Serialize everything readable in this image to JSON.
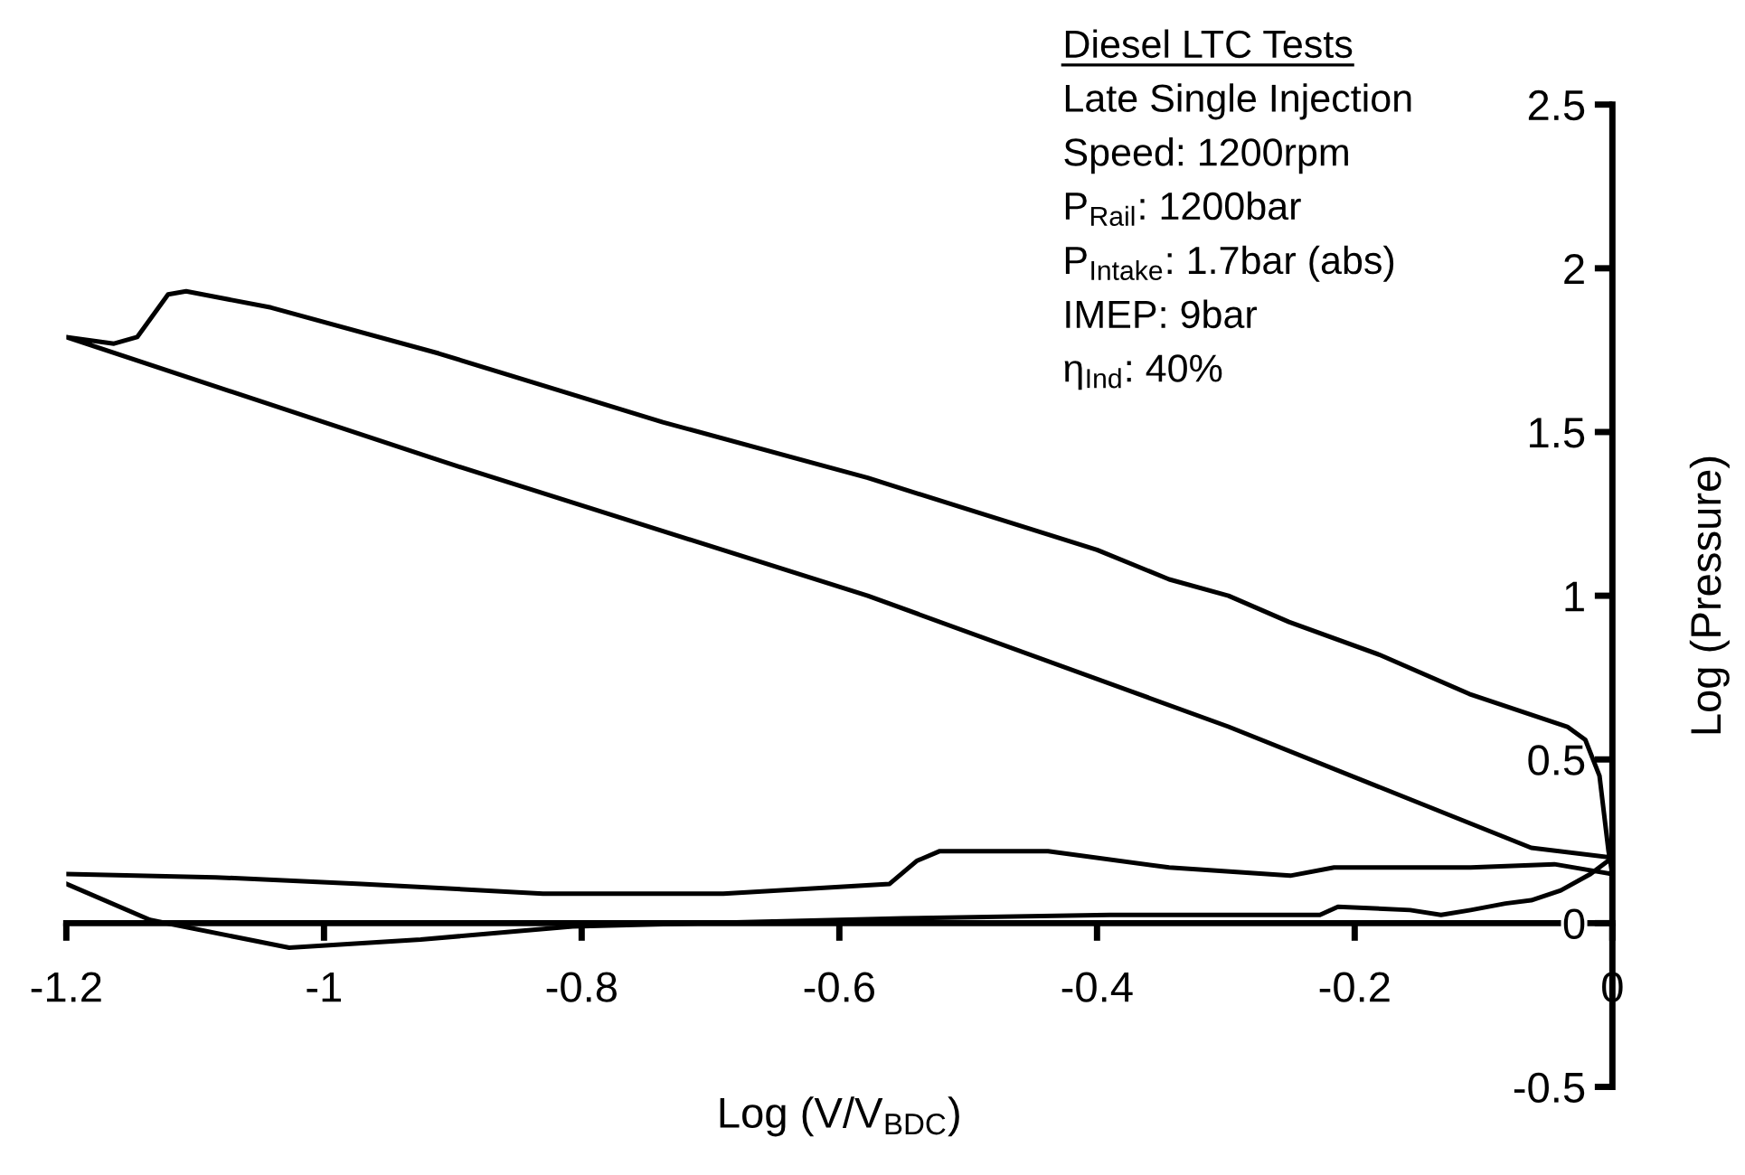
{
  "chart_data": {
    "type": "line",
    "xlabel": "Log (V/V$_{BDC}$)",
    "ylabel": "Log (Pressure)",
    "annotations": [
      "Diesel LTC Tests",
      "Late Single Injection",
      "Speed: 1200rpm",
      "P$_{Rail}$: 1200bar",
      "P$_{Intake}$: 1.7bar (abs)",
      "IMEP: 9bar",
      "η$_{Ind}$: 40%"
    ],
    "xlim": [
      -1.2,
      0
    ],
    "ylim": [
      -0.5,
      2.5
    ],
    "xticks": [
      -1.2,
      -1,
      -0.8,
      -0.6,
      -0.4,
      -0.2,
      0
    ],
    "yticks": [
      -0.5,
      0,
      0.5,
      1,
      1.5,
      2,
      2.5
    ],
    "series": [
      {
        "color": "#000000",
        "x": [
          -1.2,
          -1.135,
          -1.027,
          -0.925,
          -0.807,
          -0.55,
          -0.39,
          -0.227,
          -0.213,
          -0.157,
          -0.133,
          -0.11,
          -0.083,
          -0.063,
          -0.04,
          -0.017,
          0,
          -0.063,
          -0.298,
          -0.578,
          -0.9,
          -1.2,
          -1.163,
          -1.145,
          -1.121,
          -1.107,
          -1.041,
          -0.911,
          -0.737,
          -0.578,
          -0.4,
          -0.344,
          -0.298,
          -0.251,
          -0.181,
          -0.111,
          -0.035,
          -0.021,
          -0.01,
          -0.003,
          0,
          -0.045,
          -0.11,
          -0.171,
          -0.216,
          -0.25,
          -0.344,
          -0.438,
          -0.522,
          -0.54,
          -0.561,
          -0.69,
          -0.83,
          -0.971,
          -1.084,
          -1.2
        ],
        "values": [
          0.12,
          0.01,
          -0.075,
          -0.05,
          -0.01,
          0.015,
          0.025,
          0.025,
          0.05,
          0.04,
          0.025,
          0.04,
          0.06,
          0.07,
          0.1,
          0.15,
          0.2,
          0.23,
          0.6,
          1.0,
          1.4,
          1.79,
          1.77,
          1.79,
          1.92,
          1.93,
          1.88,
          1.74,
          1.53,
          1.36,
          1.14,
          1.05,
          1.0,
          0.92,
          0.82,
          0.7,
          0.6,
          0.56,
          0.45,
          0.22,
          0.15,
          0.18,
          0.17,
          0.17,
          0.17,
          0.145,
          0.17,
          0.22,
          0.22,
          0.19,
          0.12,
          0.09,
          0.09,
          0.12,
          0.14,
          0.15
        ]
      }
    ]
  }
}
